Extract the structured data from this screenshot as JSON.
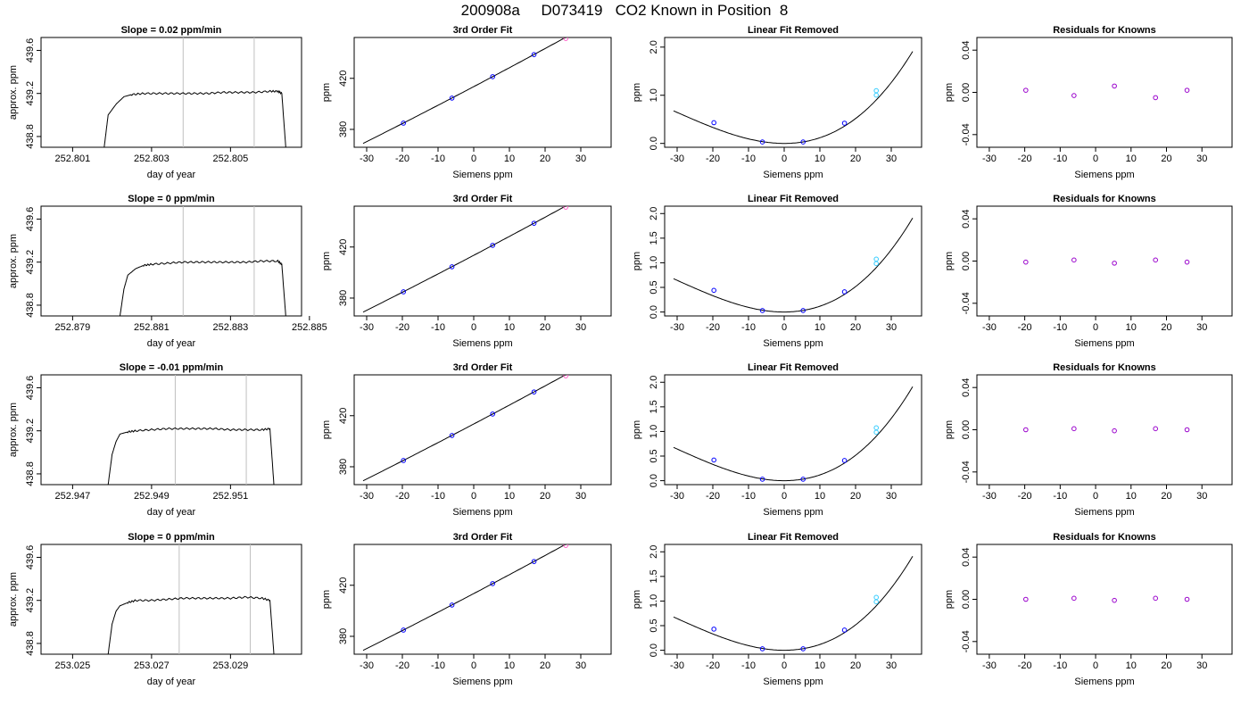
{
  "title": "200908a     D073419   CO2 Known in Position  8",
  "panel_titles": {
    "fit": "3rd Order Fit",
    "removed": "Linear Fit Removed",
    "resid": "Residuals for Knowns"
  },
  "axis_labels": {
    "ts_x": "day of year",
    "ts_y": "approx. ppm",
    "siemens_x": "Siemens ppm",
    "ppm_y": "ppm"
  },
  "colors": {
    "axis": "#000000",
    "line": "#000000",
    "marker_line": "#c0c0c0",
    "point_blue": "#0000ff",
    "point_purple": "#9900cc",
    "point_magenta": "#ff66cc",
    "point_cyan": "#33ccff"
  },
  "chart_data": [
    {
      "type": "line",
      "panel": "time-series",
      "row": 1,
      "title": "Slope =  0.02  ppm/min",
      "xlabel": "day of year",
      "ylabel": "approx. ppm",
      "xlim": [
        252.8002,
        252.8068
      ],
      "ylim": [
        438.7,
        439.72
      ],
      "xticks": [
        252.801,
        252.803,
        252.805
      ],
      "xtick_labels": [
        "252.801",
        "252.803",
        "252.805"
      ],
      "yticks": [
        438.8,
        439.2,
        439.6
      ],
      "ytick_labels": [
        "438.8",
        "439.2",
        "439.6"
      ],
      "markers": [
        252.8038,
        252.8056
      ],
      "x": [
        252.8018,
        252.8019,
        252.8021,
        252.8023,
        252.8025,
        252.8028,
        252.8032,
        252.8036,
        252.804,
        252.8044,
        252.8048,
        252.8052,
        252.8056,
        252.806,
        252.8062,
        252.8063,
        252.8064
      ],
      "y": [
        438.7,
        439.0,
        439.1,
        439.17,
        439.19,
        439.2,
        439.2,
        439.2,
        439.2,
        439.2,
        439.21,
        439.21,
        439.21,
        439.22,
        439.22,
        439.2,
        438.7
      ]
    },
    {
      "type": "scatter",
      "panel": "third-order-fit",
      "row": 1,
      "title": "3rd Order Fit",
      "xlabel": "Siemens ppm",
      "ylabel": "ppm",
      "xlim": [
        -33.5,
        38.5
      ],
      "ylim": [
        366,
        452
      ],
      "xticks": [
        -30,
        -20,
        -10,
        0,
        10,
        20,
        30
      ],
      "xtick_labels": [
        "-30",
        "-20",
        "-10",
        "0",
        "10",
        "20",
        "30"
      ],
      "yticks": [
        380,
        420
      ],
      "ytick_labels": [
        "380",
        "420"
      ],
      "fit_range": [
        -31,
        36
      ],
      "fit_coefficients": [
        413.5,
        1.47,
        0.0011
      ],
      "x": [
        -19.7,
        -6.1,
        5.3,
        16.9,
        25.8
      ],
      "y": [
        384.9,
        404.5,
        421.3,
        438.6,
        451.2
      ]
    },
    {
      "type": "scatter",
      "panel": "linear-fit-removed",
      "row": 1,
      "title": "Linear Fit Removed",
      "xlabel": "Siemens ppm",
      "ylabel": "ppm",
      "xlim": [
        -33.5,
        38.5
      ],
      "ylim": [
        -0.08,
        2.2
      ],
      "xticks": [
        -30,
        -20,
        -10,
        0,
        10,
        20,
        30
      ],
      "xtick_labels": [
        "-30",
        "-20",
        "-10",
        "0",
        "10",
        "20",
        "30"
      ],
      "yticks": [
        0.0,
        1.0,
        2.0
      ],
      "ytick_labels": [
        "0.0",
        "1.0",
        "2.0"
      ],
      "curve_range": [
        -31,
        36
      ],
      "curve_coefficients": [
        0.0,
        0.0,
        0.00106,
        1.15e-05
      ],
      "x": [
        -19.7,
        -6.1,
        5.3,
        16.9,
        25.8
      ],
      "y": [
        0.43,
        0.03,
        0.03,
        0.42,
        1.04
      ]
    },
    {
      "type": "scatter",
      "panel": "residuals",
      "row": 1,
      "title": "Residuals for Knowns",
      "xlabel": "Siemens ppm",
      "ylabel": "ppm",
      "xlim": [
        -33.5,
        38.5
      ],
      "ylim": [
        -0.052,
        0.052
      ],
      "xticks": [
        -30,
        -20,
        -10,
        0,
        10,
        20,
        30
      ],
      "xtick_labels": [
        "-30",
        "-20",
        "-10",
        "0",
        "10",
        "20",
        "30"
      ],
      "yticks": [
        -0.04,
        0.0,
        0.04
      ],
      "ytick_labels": [
        "-0.04",
        "0.00",
        "0.04"
      ],
      "x": [
        -19.7,
        -6.1,
        5.3,
        16.9,
        25.8
      ],
      "y": [
        0.002,
        -0.003,
        0.006,
        -0.005,
        0.002
      ]
    },
    {
      "type": "line",
      "panel": "time-series",
      "row": 2,
      "title": "Slope =  0  ppm/min",
      "xlabel": "day of year",
      "ylabel": "approx. ppm",
      "xlim": [
        252.8782,
        252.8848
      ],
      "ylim": [
        438.7,
        439.72
      ],
      "xticks": [
        252.879,
        252.881,
        252.883,
        252.885
      ],
      "xtick_labels": [
        "252.879",
        "252.881",
        "252.883",
        "252.885"
      ],
      "yticks": [
        438.8,
        439.2,
        439.6
      ],
      "ytick_labels": [
        "438.8",
        "439.2",
        "439.6"
      ],
      "markers": [
        252.8818,
        252.8836
      ],
      "x": [
        252.8802,
        252.8803,
        252.8804,
        252.8806,
        252.8808,
        252.881,
        252.8814,
        252.8818,
        252.8822,
        252.8826,
        252.883,
        252.8834,
        252.8838,
        252.8842,
        252.8843,
        252.8844
      ],
      "y": [
        438.7,
        438.95,
        439.08,
        439.14,
        439.17,
        439.18,
        439.19,
        439.2,
        439.2,
        439.2,
        439.2,
        439.2,
        439.21,
        439.21,
        439.18,
        438.7
      ]
    },
    {
      "type": "scatter",
      "panel": "third-order-fit",
      "row": 2,
      "title": "3rd Order Fit",
      "xlabel": "Siemens ppm",
      "ylabel": "ppm",
      "xlim": [
        -33.5,
        38.5
      ],
      "ylim": [
        366,
        452
      ],
      "xticks": [
        -30,
        -20,
        -10,
        0,
        10,
        20,
        30
      ],
      "xtick_labels": [
        "-30",
        "-20",
        "-10",
        "0",
        "10",
        "20",
        "30"
      ],
      "yticks": [
        380,
        420
      ],
      "ytick_labels": [
        "380",
        "420"
      ],
      "fit_range": [
        -31,
        36
      ],
      "fit_coefficients": [
        413.5,
        1.47,
        0.0011
      ],
      "x": [
        -19.7,
        -6.1,
        5.3,
        16.9,
        25.8
      ],
      "y": [
        384.9,
        404.5,
        421.3,
        438.6,
        451.2
      ]
    },
    {
      "type": "scatter",
      "panel": "linear-fit-removed",
      "row": 2,
      "title": "Linear Fit Removed",
      "xlabel": "Siemens ppm",
      "ylabel": "ppm",
      "xlim": [
        -33.5,
        38.5
      ],
      "ylim": [
        -0.08,
        2.15
      ],
      "xticks": [
        -30,
        -20,
        -10,
        0,
        10,
        20,
        30
      ],
      "xtick_labels": [
        "-30",
        "-20",
        "-10",
        "0",
        "10",
        "20",
        "30"
      ],
      "yticks": [
        0.0,
        0.5,
        1.0,
        1.5,
        2.0
      ],
      "ytick_labels": [
        "0.0",
        "0.5",
        "1.0",
        "1.5",
        "2.0"
      ],
      "curve_range": [
        -31,
        36
      ],
      "curve_coefficients": [
        0.0,
        0.0,
        0.00106,
        1.15e-05
      ],
      "x": [
        -19.7,
        -6.1,
        5.3,
        16.9,
        25.8
      ],
      "y": [
        0.44,
        0.03,
        0.03,
        0.41,
        1.02
      ]
    },
    {
      "type": "scatter",
      "panel": "residuals",
      "row": 2,
      "title": "Residuals for Knowns",
      "xlabel": "Siemens ppm",
      "ylabel": "ppm",
      "xlim": [
        -33.5,
        38.5
      ],
      "ylim": [
        -0.052,
        0.052
      ],
      "xticks": [
        -30,
        -20,
        -10,
        0,
        10,
        20,
        30
      ],
      "xtick_labels": [
        "-30",
        "-20",
        "-10",
        "0",
        "10",
        "20",
        "30"
      ],
      "yticks": [
        -0.04,
        0.0,
        0.04
      ],
      "ytick_labels": [
        "-0.04",
        "0.00",
        "0.04"
      ],
      "x": [
        -19.7,
        -6.1,
        5.3,
        16.9,
        25.8
      ],
      "y": [
        -0.001,
        0.001,
        -0.002,
        0.001,
        -0.001
      ]
    },
    {
      "type": "line",
      "panel": "time-series",
      "row": 3,
      "title": "Slope =  -0.01  ppm/min",
      "xlabel": "day of year",
      "ylabel": "approx. ppm",
      "xlim": [
        252.9462,
        252.9528
      ],
      "ylim": [
        438.7,
        439.72
      ],
      "xticks": [
        252.947,
        252.949,
        252.951
      ],
      "xtick_labels": [
        "252.947",
        "252.949",
        "252.951"
      ],
      "yticks": [
        438.8,
        439.2,
        439.6
      ],
      "ytick_labels": [
        "438.8",
        "439.2",
        "439.6"
      ],
      "markers": [
        252.9496,
        252.9514
      ],
      "x": [
        252.9479,
        252.948,
        252.9481,
        252.9482,
        252.9484,
        252.9486,
        252.949,
        252.9494,
        252.9498,
        252.9502,
        252.9506,
        252.951,
        252.9514,
        252.9518,
        252.952,
        252.9521
      ],
      "y": [
        438.7,
        438.98,
        439.1,
        439.17,
        439.19,
        439.2,
        439.21,
        439.22,
        439.22,
        439.22,
        439.22,
        439.21,
        439.21,
        439.21,
        439.22,
        438.7
      ]
    },
    {
      "type": "scatter",
      "panel": "third-order-fit",
      "row": 3,
      "title": "3rd Order Fit",
      "xlabel": "Siemens ppm",
      "ylabel": "ppm",
      "xlim": [
        -33.5,
        38.5
      ],
      "ylim": [
        366,
        452
      ],
      "xticks": [
        -30,
        -20,
        -10,
        0,
        10,
        20,
        30
      ],
      "xtick_labels": [
        "-30",
        "-20",
        "-10",
        "0",
        "10",
        "20",
        "30"
      ],
      "yticks": [
        380,
        420
      ],
      "ytick_labels": [
        "380",
        "420"
      ],
      "fit_range": [
        -31,
        36
      ],
      "fit_coefficients": [
        413.5,
        1.47,
        0.0011
      ],
      "x": [
        -19.7,
        -6.1,
        5.3,
        16.9,
        25.8
      ],
      "y": [
        384.9,
        404.5,
        421.3,
        438.6,
        451.2
      ]
    },
    {
      "type": "scatter",
      "panel": "linear-fit-removed",
      "row": 3,
      "title": "Linear Fit Removed",
      "xlabel": "Siemens ppm",
      "ylabel": "ppm",
      "xlim": [
        -33.5,
        38.5
      ],
      "ylim": [
        -0.08,
        2.15
      ],
      "xticks": [
        -30,
        -20,
        -10,
        0,
        10,
        20,
        30
      ],
      "xtick_labels": [
        "-30",
        "-20",
        "-10",
        "0",
        "10",
        "20",
        "30"
      ],
      "yticks": [
        0.0,
        0.5,
        1.0,
        1.5,
        2.0
      ],
      "ytick_labels": [
        "0.0",
        "0.5",
        "1.0",
        "1.5",
        "2.0"
      ],
      "curve_range": [
        -31,
        36
      ],
      "curve_coefficients": [
        0.0,
        0.0,
        0.00106,
        1.15e-05
      ],
      "x": [
        -19.7,
        -6.1,
        5.3,
        16.9,
        25.8
      ],
      "y": [
        0.42,
        0.03,
        0.03,
        0.41,
        1.02
      ]
    },
    {
      "type": "scatter",
      "panel": "residuals",
      "row": 3,
      "title": "Residuals for Knowns",
      "xlabel": "Siemens ppm",
      "ylabel": "ppm",
      "xlim": [
        -33.5,
        38.5
      ],
      "ylim": [
        -0.052,
        0.052
      ],
      "xticks": [
        -30,
        -20,
        -10,
        0,
        10,
        20,
        30
      ],
      "xtick_labels": [
        "-30",
        "-20",
        "-10",
        "0",
        "10",
        "20",
        "30"
      ],
      "yticks": [
        -0.04,
        0.0,
        0.04
      ],
      "ytick_labels": [
        "-0.04",
        "0.00",
        "0.04"
      ],
      "x": [
        -19.7,
        -6.1,
        5.3,
        16.9,
        25.8
      ],
      "y": [
        0.0,
        0.001,
        -0.001,
        0.001,
        0.0
      ]
    },
    {
      "type": "line",
      "panel": "time-series",
      "row": 4,
      "title": "Slope =  0  ppm/min",
      "xlabel": "day of year",
      "ylabel": "approx. ppm",
      "xlim": [
        253.0242,
        253.0308
      ],
      "ylim": [
        438.7,
        439.72
      ],
      "xticks": [
        253.025,
        253.027,
        253.029
      ],
      "xtick_labels": [
        "253.025",
        "253.027",
        "253.029"
      ],
      "yticks": [
        438.8,
        439.2,
        439.6
      ],
      "ytick_labels": [
        "438.8",
        "439.2",
        "439.6"
      ],
      "markers": [
        253.0277,
        253.0295
      ],
      "x": [
        253.0259,
        253.026,
        253.0261,
        253.0262,
        253.0264,
        253.0266,
        253.027,
        253.0274,
        253.0278,
        253.0282,
        253.0286,
        253.029,
        253.0294,
        253.0298,
        253.03,
        253.0301
      ],
      "y": [
        438.7,
        438.98,
        439.1,
        439.15,
        439.18,
        439.2,
        439.2,
        439.21,
        439.22,
        439.22,
        439.22,
        439.22,
        439.23,
        439.22,
        439.2,
        438.7
      ]
    },
    {
      "type": "scatter",
      "panel": "third-order-fit",
      "row": 4,
      "title": "3rd Order Fit",
      "xlabel": "Siemens ppm",
      "ylabel": "ppm",
      "xlim": [
        -33.5,
        38.5
      ],
      "ylim": [
        366,
        452
      ],
      "xticks": [
        -30,
        -20,
        -10,
        0,
        10,
        20,
        30
      ],
      "xtick_labels": [
        "-30",
        "-20",
        "-10",
        "0",
        "10",
        "20",
        "30"
      ],
      "yticks": [
        380,
        420
      ],
      "ytick_labels": [
        "380",
        "420"
      ],
      "fit_range": [
        -31,
        36
      ],
      "fit_coefficients": [
        413.5,
        1.47,
        0.0011
      ],
      "x": [
        -19.7,
        -6.1,
        5.3,
        16.9,
        25.8
      ],
      "y": [
        384.9,
        404.5,
        421.3,
        438.6,
        451.2
      ]
    },
    {
      "type": "scatter",
      "panel": "linear-fit-removed",
      "row": 4,
      "title": "Linear Fit Removed",
      "xlabel": "Siemens ppm",
      "ylabel": "ppm",
      "xlim": [
        -33.5,
        38.5
      ],
      "ylim": [
        -0.08,
        2.15
      ],
      "xticks": [
        -30,
        -20,
        -10,
        0,
        10,
        20,
        30
      ],
      "xtick_labels": [
        "-30",
        "-20",
        "-10",
        "0",
        "10",
        "20",
        "30"
      ],
      "yticks": [
        0.0,
        0.5,
        1.0,
        1.5,
        2.0
      ],
      "ytick_labels": [
        "0.0",
        "0.5",
        "1.0",
        "1.5",
        "2.0"
      ],
      "curve_range": [
        -31,
        36
      ],
      "curve_coefficients": [
        0.0,
        0.0,
        0.00106,
        1.15e-05
      ],
      "x": [
        -19.7,
        -6.1,
        5.3,
        16.9,
        25.8
      ],
      "y": [
        0.43,
        0.03,
        0.03,
        0.41,
        1.02
      ]
    },
    {
      "type": "scatter",
      "panel": "residuals",
      "row": 4,
      "title": "Residuals for Knowns",
      "xlabel": "Siemens ppm",
      "ylabel": "ppm",
      "xlim": [
        -33.5,
        38.5
      ],
      "ylim": [
        -0.052,
        0.052
      ],
      "xticks": [
        -30,
        -20,
        -10,
        0,
        10,
        20,
        30
      ],
      "xtick_labels": [
        "-30",
        "-20",
        "-10",
        "0",
        "10",
        "20",
        "30"
      ],
      "yticks": [
        -0.04,
        0.0,
        0.04
      ],
      "ytick_labels": [
        "-0.04",
        "0.00",
        "0.04"
      ],
      "x": [
        -19.7,
        -6.1,
        5.3,
        16.9,
        25.8
      ],
      "y": [
        0.0,
        0.001,
        -0.001,
        0.001,
        0.0
      ]
    }
  ]
}
